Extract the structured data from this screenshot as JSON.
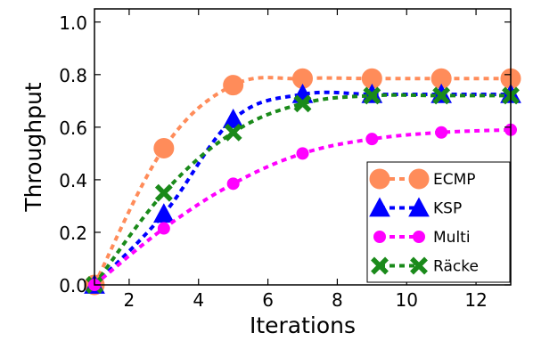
{
  "chart_data": {
    "type": "line",
    "xlabel": "Iterations",
    "ylabel": "Throughput",
    "xlim": [
      1,
      13
    ],
    "ylim": [
      0.0,
      1.05
    ],
    "xticks": [
      2,
      4,
      6,
      8,
      10,
      12
    ],
    "yticks": [
      0.0,
      0.2,
      0.4,
      0.6,
      0.8,
      1.0
    ],
    "xtick_labels": [
      "2",
      "4",
      "6",
      "8",
      "10",
      "12"
    ],
    "ytick_labels": [
      "0.0",
      "0.2",
      "0.4",
      "0.6",
      "0.8",
      "1.0"
    ],
    "grid": false,
    "legend_position": "lower-right",
    "series": [
      {
        "name": "ECMP",
        "color": "#ff8c5a",
        "marker": "circle-large",
        "x": [
          1,
          3,
          5,
          7,
          9,
          11,
          13
        ],
        "y": [
          0.0,
          0.52,
          0.76,
          0.785,
          0.785,
          0.785,
          0.785
        ]
      },
      {
        "name": "KSP",
        "color": "#0000ff",
        "marker": "triangle",
        "x": [
          1,
          3,
          5,
          7,
          9,
          11,
          13
        ],
        "y": [
          0.0,
          0.27,
          0.63,
          0.725,
          0.725,
          0.725,
          0.725
        ]
      },
      {
        "name": "Multi",
        "color": "#ff00ff",
        "marker": "circle-small",
        "x": [
          1,
          3,
          5,
          7,
          9,
          11,
          13
        ],
        "y": [
          0.0,
          0.215,
          0.385,
          0.5,
          0.555,
          0.58,
          0.59
        ]
      },
      {
        "name": "Räcke",
        "color": "#1a8a1a",
        "marker": "x",
        "x": [
          1,
          3,
          5,
          7,
          9,
          11,
          13
        ],
        "y": [
          0.0,
          0.35,
          0.58,
          0.69,
          0.72,
          0.72,
          0.72
        ]
      }
    ]
  }
}
